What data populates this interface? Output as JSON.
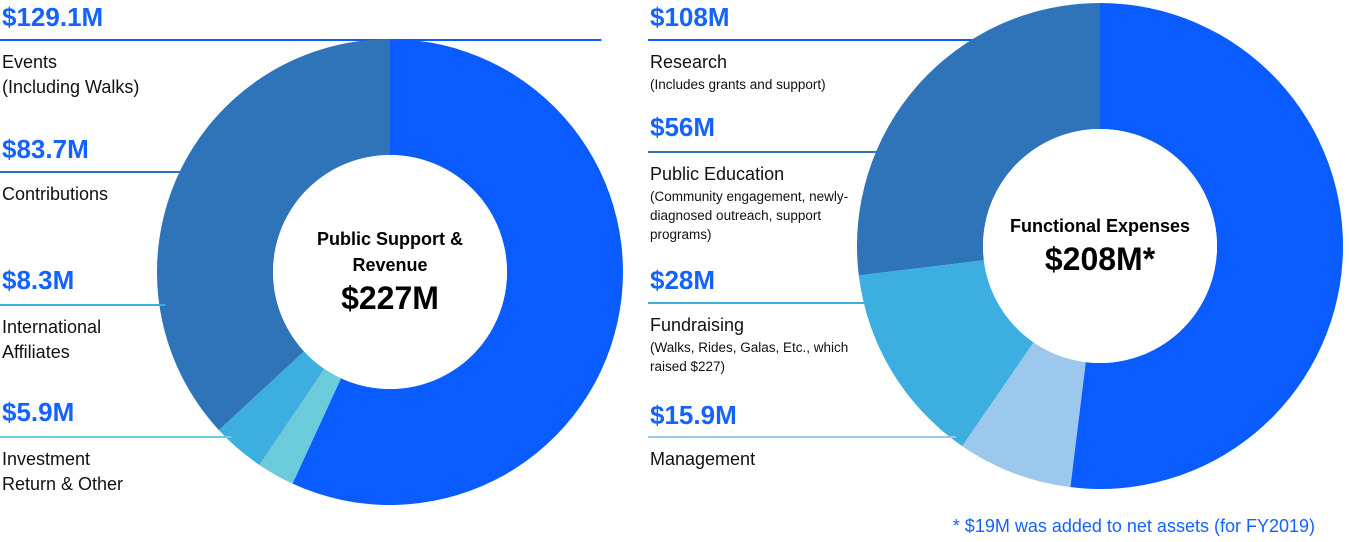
{
  "chart_data": [
    {
      "type": "donut",
      "title": "Public Support & Revenue",
      "center_value": "$227M",
      "categories": [
        "Events",
        "Contributions",
        "International Affiliates",
        "Investment Return & Other"
      ],
      "category_notes": [
        "(Including Walks)",
        null,
        null,
        null
      ],
      "values": [
        129.1,
        83.7,
        8.3,
        5.9
      ],
      "value_labels": [
        "$129.1M",
        "$83.7M",
        "$8.3M",
        "$5.9M"
      ],
      "colors": [
        "#0a5cff",
        "#2f73b8",
        "#3daee0",
        "#6ccbdb"
      ]
    },
    {
      "type": "donut",
      "title": "Functional Expenses",
      "center_value": "$208M*",
      "categories": [
        "Research",
        "Public Education",
        "Fundraising",
        "Management"
      ],
      "category_notes": [
        "(Includes grants and support)",
        "(Community engagement, newly-diagnosed outreach, support programs)",
        "(Walks, Rides, Galas, Etc., which raised $227)",
        null
      ],
      "values": [
        108,
        56,
        28,
        15.9
      ],
      "value_labels": [
        "$108M",
        "$56M",
        "$28M",
        "$15.9M"
      ],
      "colors": [
        "#0a5cff",
        "#2f73b8",
        "#3daee0",
        "#9cc8ee"
      ],
      "footnote": "* $19M was added to net assets (for FY2019)"
    }
  ]
}
